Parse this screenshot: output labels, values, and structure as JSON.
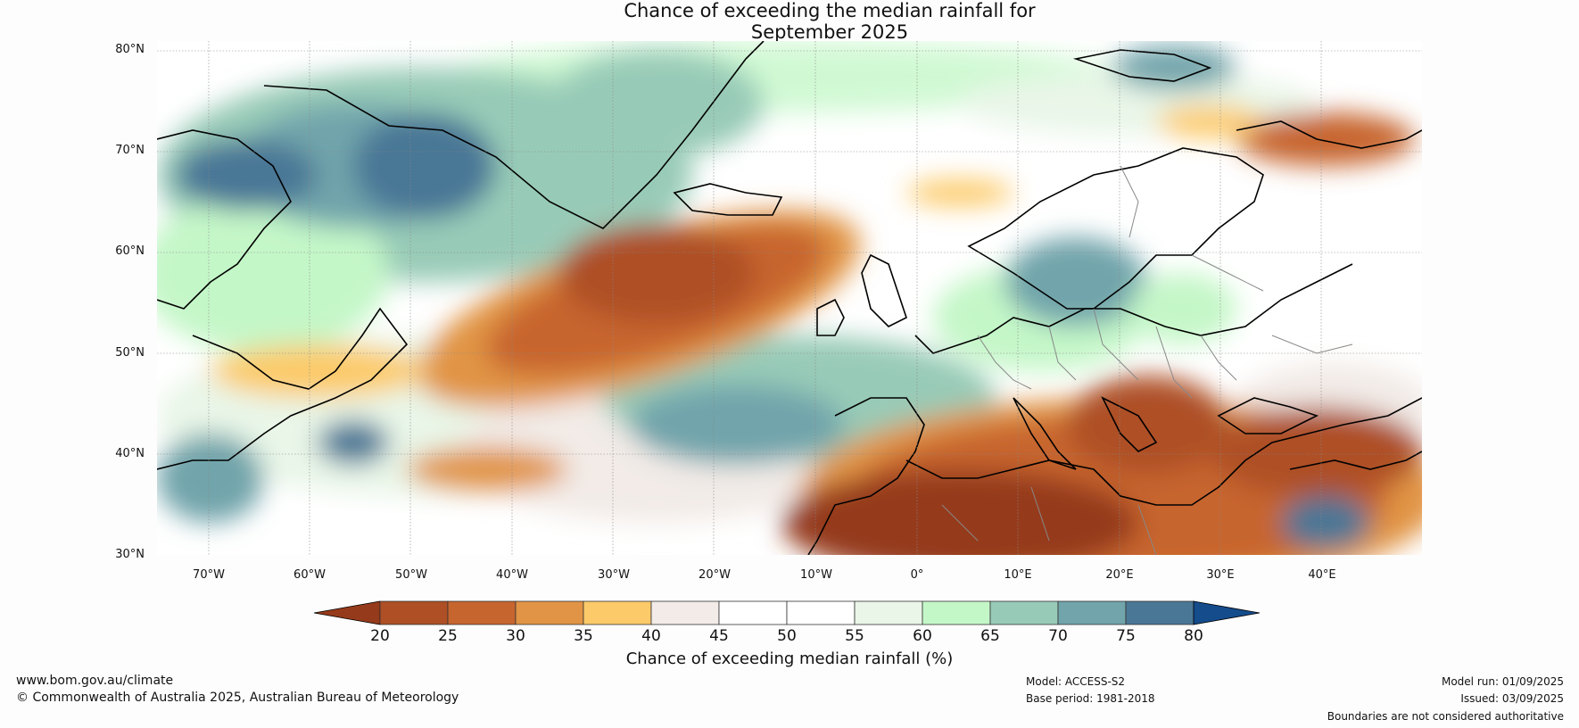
{
  "title_line1": "Chance of exceeding the median rainfall for",
  "title_line2": "September 2025",
  "lat_labels": [
    "80°N",
    "70°N",
    "60°N",
    "50°N",
    "40°N",
    "30°N"
  ],
  "lon_labels": [
    "70°W",
    "60°W",
    "50°W",
    "40°W",
    "30°W",
    "20°W",
    "10°W",
    "0°",
    "10°E",
    "20°E",
    "30°E",
    "40°E"
  ],
  "colorbar": {
    "ticks": [
      "20",
      "25",
      "30",
      "35",
      "40",
      "45",
      "50",
      "55",
      "60",
      "65",
      "70",
      "75",
      "80"
    ],
    "colors": [
      "#953a1a",
      "#ae4f25",
      "#c7652f",
      "#e19445",
      "#fcca69",
      "#f2ebe7",
      "#ffffff",
      "#ffffff",
      "#e9f6e8",
      "#c4f7c8",
      "#98cbb7",
      "#71a4ab",
      "#4a7796",
      "#144c8c"
    ],
    "label": "Chance of exceeding median rainfall (%)"
  },
  "footer": {
    "website": "www.bom.gov.au/climate",
    "copyright": "© Commonwealth of Australia 2025, Australian Bureau of Meteorology",
    "model": "Model: ACCESS-S2",
    "base_period": "Base period: 1981-2018",
    "model_run": "Model run: 01/09/2025",
    "issued": "Issued: 03/09/2025",
    "disclaimer": "Boundaries are not considered authoritative"
  }
}
